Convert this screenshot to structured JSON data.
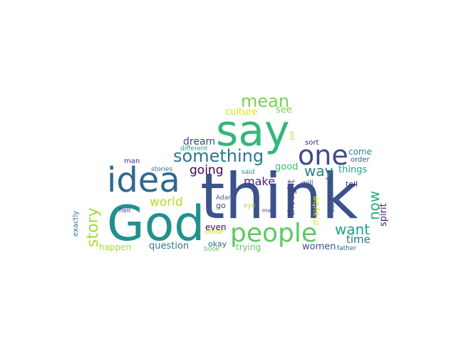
{
  "words": [
    {
      "text": "think",
      "color": "#3b528b"
    },
    {
      "text": "God",
      "color": "#21918c"
    },
    {
      "text": "say",
      "color": "#35b779"
    },
    {
      "text": "idea",
      "color": "#31688e"
    },
    {
      "text": "people",
      "color": "#5ec962"
    },
    {
      "text": "one",
      "color": "#3e4a89"
    },
    {
      "text": "something",
      "color": "#2a788e"
    },
    {
      "text": "mean",
      "color": "#7ad151"
    },
    {
      "text": "story",
      "color": "#a5db36"
    },
    {
      "text": "want",
      "color": "#1f9e89"
    },
    {
      "text": "way",
      "color": "#277f8e"
    },
    {
      "text": "now",
      "color": "#27ad81"
    },
    {
      "text": "going",
      "color": "#440154"
    },
    {
      "text": "world",
      "color": "#b5de2b"
    },
    {
      "text": "make",
      "color": "#482878"
    },
    {
      "text": "dream",
      "color": "#3e4989"
    },
    {
      "text": "time",
      "color": "#2c728e"
    },
    {
      "text": "question",
      "color": "#2a788e"
    },
    {
      "text": "women",
      "color": "#3b528b"
    },
    {
      "text": "culture",
      "color": "#d8e219"
    },
    {
      "text": "see",
      "color": "#73d055"
    },
    {
      "text": "good",
      "color": "#3dbc74"
    },
    {
      "text": "things",
      "color": "#20a486"
    },
    {
      "text": "come",
      "color": "#25838e"
    },
    {
      "text": "thought",
      "color": "#433d84"
    },
    {
      "text": "maybe",
      "color": "#d8e219"
    },
    {
      "text": "spirit",
      "color": "#482173"
    },
    {
      "text": "happen",
      "color": "#a5db36"
    },
    {
      "text": "trying",
      "color": "#5ec962"
    },
    {
      "text": "even",
      "color": "#440154"
    },
    {
      "text": "go",
      "color": "#404688"
    },
    {
      "text": "okay",
      "color": "#33638d"
    },
    {
      "text": "exactly",
      "color": "#2a788e"
    },
    {
      "text": "tell",
      "color": "#46327e"
    },
    {
      "text": "order",
      "color": "#3b528b"
    },
    {
      "text": "sort",
      "color": "#482475"
    },
    {
      "text": "will",
      "color": "#3e4a89"
    },
    {
      "text": "said",
      "color": "#21918c"
    },
    {
      "text": "man",
      "color": "#472c7a"
    },
    {
      "text": "stories",
      "color": "#2c728e"
    },
    {
      "text": "different",
      "color": "#20a486"
    },
    {
      "text": "Adam",
      "color": "#31688e"
    },
    {
      "text": "eye",
      "color": "#95d840"
    },
    {
      "text": "men",
      "color": "#404688"
    },
    {
      "text": "hell",
      "color": "#424086"
    },
    {
      "text": "sense",
      "color": "#bddf26"
    },
    {
      "text": "book",
      "color": "#5ec962"
    },
    {
      "text": "father",
      "color": "#33638d"
    },
    {
      "text": "back",
      "color": "#3b528b"
    },
    {
      "text": "put",
      "color": "#addc30"
    }
  ]
}
